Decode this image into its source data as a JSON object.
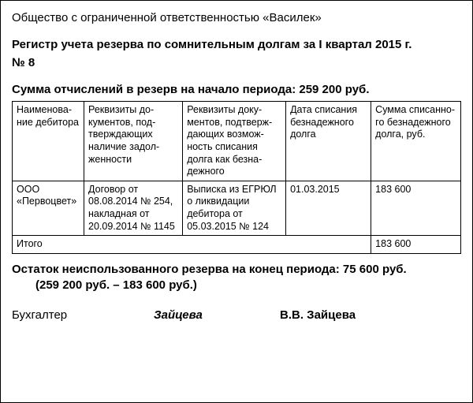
{
  "company": "Общество с ограниченной ответственностью «Василек»",
  "title": "Регистр учета резерва по сомнительным долгам за I квартал 2015 г.",
  "reg_number": "№ 8",
  "opening_line": "Сумма отчислений в резерв на начало периода: 259 200 руб.",
  "table": {
    "columns": [
      "Наименова­ние дебитора",
      "Реквизиты до­кументов, под­тверждающих наличие задол­женности",
      "Реквизиты доку­ментов, подтверж­дающих возмож­ность списания долга как безна­дежного",
      "Дата списания безнадежного долга",
      "Сумма списанно­го безнадежного долга, руб."
    ],
    "rows": [
      [
        "ООО «Перво­цвет»",
        "Договор от 08.08.2014 № 254, на­кладная от 20.09.2014 № 1145",
        "Выписка из ЕГРЮЛ о ликви­дации дебитора от 05.03.2015 № 124",
        "01.03.2015",
        "183 600"
      ]
    ],
    "totals_label": "Итого",
    "totals_value": "183 600"
  },
  "closing_line": "Остаток неиспользованного резерва на конец периода: 75 600 руб.",
  "calc_line": "(259 200 руб. – 183 600 руб.)",
  "signature": {
    "role": "Бухгалтер",
    "sign": "Зайцева",
    "name": "В.В. Зайцева"
  }
}
